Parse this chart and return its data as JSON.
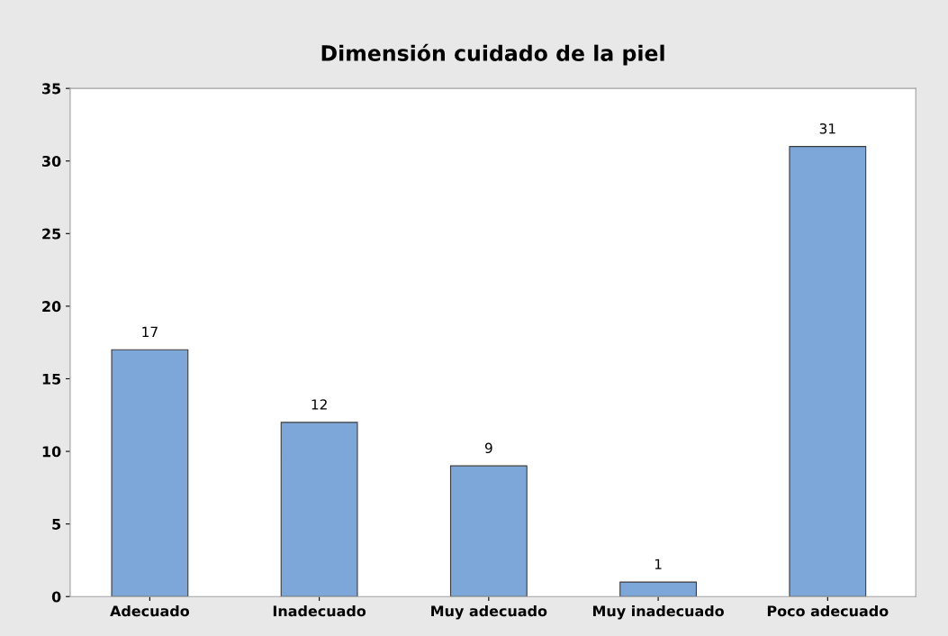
{
  "chart_data": {
    "type": "bar",
    "title": "Dimensión cuidado de la piel",
    "categories": [
      "Adecuado",
      "Inadecuado",
      "Muy adecuado",
      "Muy inadecuado",
      "Poco adecuado"
    ],
    "values": [
      17,
      12,
      9,
      1,
      31
    ],
    "color": "#7da7d9",
    "ylim": [
      0,
      35
    ],
    "yticks": [
      0,
      5,
      10,
      15,
      20,
      25,
      30,
      35
    ],
    "grid": false,
    "data_labels": true
  }
}
